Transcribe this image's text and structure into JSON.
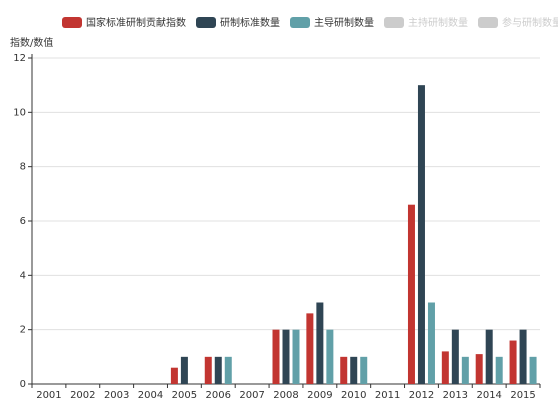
{
  "chart_data": {
    "type": "bar",
    "y_axis_label": "指数/数值",
    "categories": [
      "2001",
      "2002",
      "2003",
      "2004",
      "2005",
      "2006",
      "2007",
      "2008",
      "2009",
      "2010",
      "2011",
      "2012",
      "2013",
      "2014",
      "2015"
    ],
    "series": [
      {
        "name": "国家标准研制贡献指数",
        "color": "#c23531",
        "values": [
          0,
          0,
          0,
          0,
          0.6,
          1,
          0,
          2,
          2.6,
          1,
          0,
          6.6,
          1.2,
          1.1,
          1.6
        ]
      },
      {
        "name": "研制标准数量",
        "color": "#2f4554",
        "values": [
          0,
          0,
          0,
          0,
          1,
          1,
          0,
          2,
          3,
          1,
          0,
          11,
          2,
          2,
          2
        ]
      },
      {
        "name": "主导研制数量",
        "color": "#61a0a8",
        "values": [
          0,
          0,
          0,
          0,
          0,
          1,
          0,
          2,
          2,
          1,
          0,
          3,
          1,
          1,
          1
        ]
      }
    ],
    "inactive_legend": {
      "names": [
        "主持研制数量",
        "参与研制数量"
      ],
      "color": "#cccccc"
    },
    "ylim": [
      0,
      12
    ],
    "yticks": [
      0,
      2,
      4,
      6,
      8,
      10,
      12
    ],
    "grid": true
  }
}
